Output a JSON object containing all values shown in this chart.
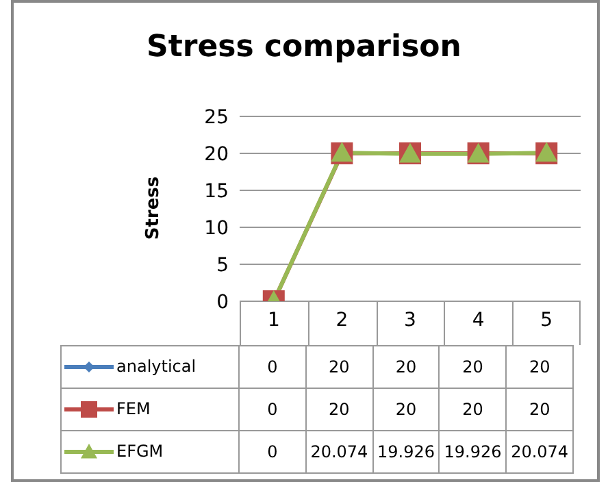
{
  "chart_data": {
    "type": "line",
    "title": "Stress comparison",
    "ylabel": "Stress",
    "categories": [
      "1",
      "2",
      "3",
      "4",
      "5"
    ],
    "series": [
      {
        "name": "analytical",
        "color": "#4a7ebb",
        "marker": "diamond",
        "values": [
          null,
          null,
          null,
          null,
          null
        ],
        "value_labels": [
          "0",
          "20",
          "20",
          "20",
          "20"
        ]
      },
      {
        "name": "FEM",
        "color": "#be4b48",
        "marker": "square",
        "values": [
          0,
          20,
          20,
          20,
          20
        ],
        "value_labels": [
          "0",
          "20",
          "20",
          "20",
          "20"
        ]
      },
      {
        "name": "EFGM",
        "color": "#98b954",
        "marker": "triangle",
        "values": [
          0,
          20.074,
          19.926,
          19.926,
          20.074
        ],
        "value_labels": [
          "0",
          "20.074",
          "19.926",
          "19.926",
          "20.074"
        ]
      }
    ],
    "ylim": [
      0,
      25
    ],
    "yticks": [
      0,
      5,
      10,
      15,
      20,
      25
    ],
    "grid": "y",
    "legend": "bottom"
  }
}
